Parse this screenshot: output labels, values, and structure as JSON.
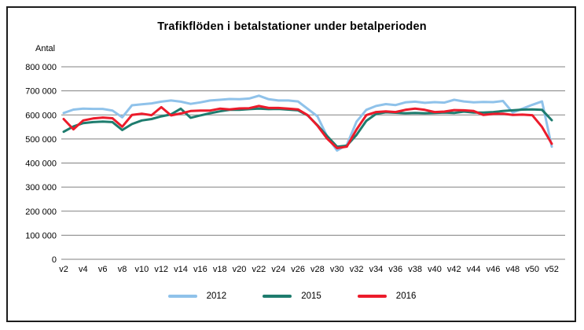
{
  "window": {
    "background": "#ffffff",
    "frame_border_color": "#1c1c1c",
    "gridline_color": "#808080",
    "text_color": "#000000"
  },
  "chart_data": {
    "type": "line",
    "title": "Trafikflöden i betalstationer under betalperioden",
    "ylabel": "Antal",
    "xlabel": "",
    "grid": "horizontal",
    "legend_position": "bottom",
    "x_range_weeks": [
      2,
      52
    ],
    "x_step_weeks": 1,
    "x_tick_labels": [
      "v2",
      "v4",
      "v6",
      "v8",
      "v10",
      "v12",
      "v14",
      "v16",
      "v18",
      "v20",
      "v22",
      "v24",
      "v26",
      "v28",
      "v30",
      "v32",
      "v34",
      "v36",
      "v38",
      "v40",
      "v42",
      "v44",
      "v46",
      "v48",
      "v50",
      "v52"
    ],
    "ylim": [
      0,
      800000
    ],
    "y_tick_step": 100000,
    "y_tick_labels": [
      "0",
      "100 000",
      "200 000",
      "300 000",
      "400 000",
      "500 000",
      "600 000",
      "700 000",
      "800 000"
    ],
    "series": [
      {
        "name": "2012",
        "color": "#8FC2EA",
        "values": [
          608000,
          622000,
          626000,
          625000,
          625000,
          618000,
          590000,
          640000,
          644000,
          648000,
          655000,
          660000,
          655000,
          646000,
          652000,
          660000,
          663000,
          666000,
          665000,
          668000,
          680000,
          665000,
          660000,
          660000,
          656000,
          625000,
          594000,
          510000,
          452000,
          475000,
          572000,
          621000,
          637000,
          645000,
          641000,
          652000,
          655000,
          650000,
          653000,
          651000,
          663000,
          656000,
          652000,
          654000,
          653000,
          658000,
          610000,
          626000,
          642000,
          656000,
          468000
        ]
      },
      {
        "name": "2015",
        "color": "#1E7C6E",
        "values": [
          530000,
          552000,
          566000,
          570000,
          572000,
          570000,
          537000,
          562000,
          577000,
          583000,
          594000,
          602000,
          626000,
          588000,
          598000,
          607000,
          615000,
          621000,
          621000,
          624000,
          626000,
          624000,
          625000,
          622000,
          619000,
          598000,
          557000,
          512000,
          468000,
          472000,
          517000,
          575000,
          604000,
          611000,
          609000,
          607000,
          608000,
          607000,
          608000,
          610000,
          608000,
          614000,
          610000,
          610000,
          612000,
          616000,
          619000,
          622000,
          623000,
          621000,
          578000
        ]
      },
      {
        "name": "2016",
        "color": "#EC1B2B",
        "values": [
          583000,
          540000,
          577000,
          585000,
          589000,
          586000,
          551000,
          600000,
          605000,
          599000,
          632000,
          598000,
          606000,
          616000,
          618000,
          618000,
          626000,
          623000,
          627000,
          628000,
          637000,
          629000,
          629000,
          626000,
          623000,
          599000,
          555000,
          501000,
          462000,
          468000,
          539000,
          599000,
          612000,
          615000,
          612000,
          621000,
          626000,
          621000,
          612000,
          614000,
          620000,
          619000,
          616000,
          600000,
          604000,
          605000,
          600000,
          601000,
          599000,
          550000,
          480000
        ]
      }
    ]
  }
}
